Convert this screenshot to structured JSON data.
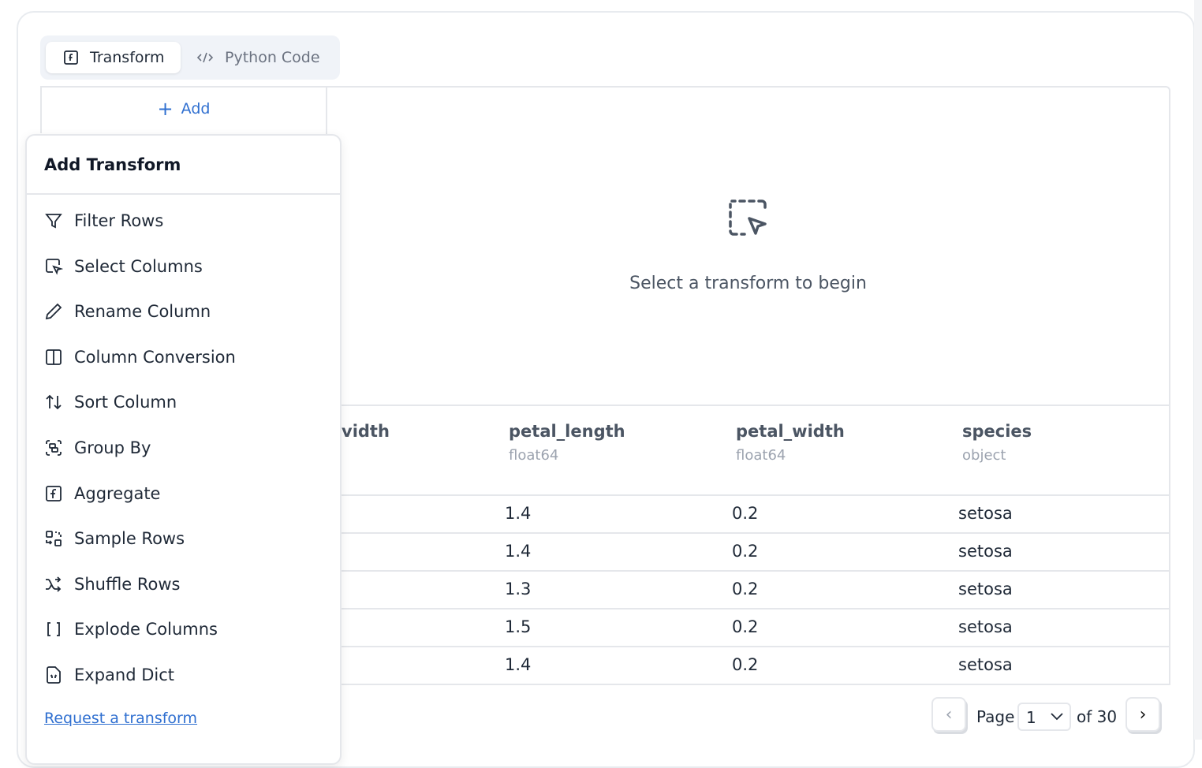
{
  "tabs": {
    "transform": "Transform",
    "python_code": "Python Code"
  },
  "add_label": "Add",
  "empty_state": {
    "text": "Select a transform to begin",
    "icon": "dashed-selection-cursor-icon"
  },
  "table": {
    "columns": [
      {
        "name": "sepal_width",
        "shown": "vidth"
      },
      {
        "name": "petal_length",
        "type": "float64"
      },
      {
        "name": "petal_width",
        "type": "float64"
      },
      {
        "name": "species",
        "type": "object"
      }
    ],
    "rows": [
      [
        "1.4",
        "0.2",
        "setosa"
      ],
      [
        "1.4",
        "0.2",
        "setosa"
      ],
      [
        "1.3",
        "0.2",
        "setosa"
      ],
      [
        "1.5",
        "0.2",
        "setosa"
      ],
      [
        "1.4",
        "0.2",
        "setosa"
      ]
    ]
  },
  "popup": {
    "title": "Add Transform",
    "items": [
      {
        "label": "Filter Rows",
        "icon": "filter-icon"
      },
      {
        "label": "Select Columns",
        "icon": "select-columns-icon"
      },
      {
        "label": "Rename Column",
        "icon": "pencil-icon"
      },
      {
        "label": "Column Conversion",
        "icon": "columns-icon"
      },
      {
        "label": "Sort Column",
        "icon": "sort-icon"
      },
      {
        "label": "Group By",
        "icon": "group-icon"
      },
      {
        "label": "Aggregate",
        "icon": "function-icon"
      },
      {
        "label": "Sample Rows",
        "icon": "sample-icon"
      },
      {
        "label": "Shuffle Rows",
        "icon": "shuffle-icon"
      },
      {
        "label": "Explode Columns",
        "icon": "brackets-icon"
      },
      {
        "label": "Expand Dict",
        "icon": "file-braces-icon"
      }
    ],
    "request_link": "Request a transform"
  },
  "pagination": {
    "page_label": "Page",
    "current": "1",
    "of_label": "of 30"
  },
  "colors": {
    "accent": "#2f6fd0",
    "border": "#e5e7eb"
  }
}
